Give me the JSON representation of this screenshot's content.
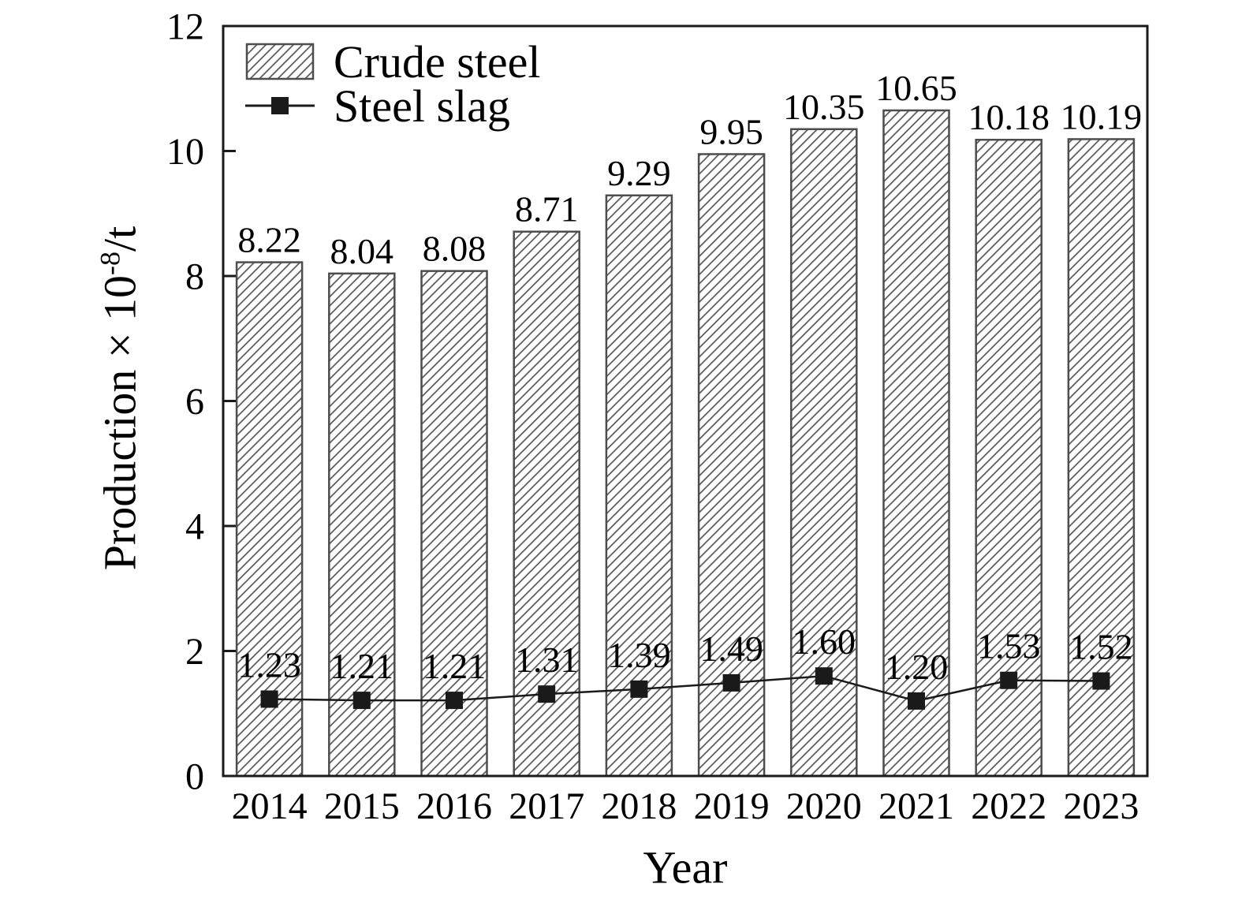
{
  "figure": {
    "background": "#ffffff"
  },
  "chart_data": {
    "type": "combo",
    "title": "",
    "categories": [
      "2014",
      "2015",
      "2016",
      "2017",
      "2018",
      "2019",
      "2020",
      "2021",
      "2022",
      "2023"
    ],
    "series": [
      {
        "name": "Crude steel",
        "type": "bar",
        "style": "diagonal-hatch",
        "values": [
          8.22,
          8.04,
          8.08,
          8.71,
          9.29,
          9.95,
          10.35,
          10.65,
          10.18,
          10.19
        ],
        "labels": [
          "8.22",
          "8.04",
          "8.08",
          "8.71",
          "9.29",
          "9.95",
          "10.35",
          "10.65",
          "10.18",
          "10.19"
        ]
      },
      {
        "name": "Steel slag",
        "type": "line",
        "marker": "filled-square",
        "values": [
          1.23,
          1.21,
          1.21,
          1.31,
          1.39,
          1.49,
          1.6,
          1.2,
          1.53,
          1.52
        ],
        "labels": [
          "1.23",
          "1.21",
          "1.21",
          "1.31",
          "1.39",
          "1.49",
          "1.60",
          "1.20",
          "1.53",
          "1.52"
        ]
      }
    ],
    "xlabel": "Year",
    "ylabel": "Production × 10⁻⁸/t",
    "ylabel_prefix": "Production × 10",
    "ylabel_exponent": "-8",
    "ylabel_suffix": "/t",
    "ylim": [
      0,
      12
    ],
    "yticks": [
      "0",
      "2",
      "4",
      "6",
      "8",
      "10",
      "12"
    ],
    "grid": false,
    "legend_position": "top-left",
    "colors": {
      "bar_fill": "#ffffff",
      "hatch_line": "#555555",
      "bar_border": "#4d4d4d",
      "frame": "#1a1a1a",
      "line": "#1a1a1a",
      "marker": "#1a1a1a",
      "text": "#000000"
    }
  }
}
